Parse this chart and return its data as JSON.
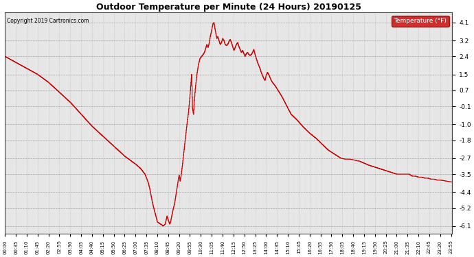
{
  "title": "Outdoor Temperature per Minute (24 Hours) 20190125",
  "copyright": "Copyright 2019 Cartronics.com",
  "legend_label": "Temperature (°F)",
  "line_color": "#cc0000",
  "legend_bg": "#cc0000",
  "legend_text_color": "#ffffff",
  "bg_color": "#ffffff",
  "plot_bg_color": "#e8e8e8",
  "grid_color": "#bbbbbb",
  "yticks": [
    4.1,
    3.2,
    2.4,
    1.5,
    0.7,
    -0.1,
    -1.0,
    -1.8,
    -2.7,
    -3.5,
    -4.4,
    -5.2,
    -6.1
  ],
  "ylim": [
    -6.5,
    4.6
  ],
  "xtick_interval_minutes": 35,
  "total_minutes": 1440,
  "key_points": [
    [
      0,
      2.4
    ],
    [
      35,
      2.1
    ],
    [
      70,
      1.8
    ],
    [
      105,
      1.5
    ],
    [
      140,
      1.1
    ],
    [
      175,
      0.6
    ],
    [
      210,
      0.1
    ],
    [
      245,
      -0.5
    ],
    [
      280,
      -1.1
    ],
    [
      315,
      -1.6
    ],
    [
      350,
      -2.1
    ],
    [
      385,
      -2.6
    ],
    [
      420,
      -3.0
    ],
    [
      435,
      -3.2
    ],
    [
      450,
      -3.5
    ],
    [
      455,
      -3.7
    ],
    [
      460,
      -3.9
    ],
    [
      465,
      -4.2
    ],
    [
      470,
      -4.6
    ],
    [
      475,
      -5.0
    ],
    [
      480,
      -5.3
    ],
    [
      485,
      -5.6
    ],
    [
      490,
      -5.9
    ],
    [
      500,
      -6.0
    ],
    [
      505,
      -6.05
    ],
    [
      508,
      -6.1
    ],
    [
      512,
      -6.05
    ],
    [
      515,
      -6.0
    ],
    [
      518,
      -5.8
    ],
    [
      521,
      -5.6
    ],
    [
      524,
      -5.75
    ],
    [
      527,
      -5.9
    ],
    [
      530,
      -6.0
    ],
    [
      533,
      -5.85
    ],
    [
      536,
      -5.6
    ],
    [
      540,
      -5.3
    ],
    [
      545,
      -5.0
    ],
    [
      550,
      -4.5
    ],
    [
      555,
      -4.0
    ],
    [
      558,
      -3.7
    ],
    [
      560,
      -3.55
    ],
    [
      563,
      -3.85
    ],
    [
      566,
      -3.6
    ],
    [
      570,
      -3.1
    ],
    [
      575,
      -2.4
    ],
    [
      580,
      -1.7
    ],
    [
      585,
      -1.0
    ],
    [
      590,
      -0.4
    ],
    [
      595,
      0.5
    ],
    [
      600,
      1.5
    ],
    [
      603,
      -0.2
    ],
    [
      606,
      -0.5
    ],
    [
      609,
      0.2
    ],
    [
      612,
      0.8
    ],
    [
      617,
      1.5
    ],
    [
      622,
      2.0
    ],
    [
      627,
      2.3
    ],
    [
      632,
      2.4
    ],
    [
      637,
      2.5
    ],
    [
      641,
      2.6
    ],
    [
      645,
      2.8
    ],
    [
      649,
      3.0
    ],
    [
      653,
      2.85
    ],
    [
      657,
      3.1
    ],
    [
      660,
      3.4
    ],
    [
      663,
      3.6
    ],
    [
      666,
      3.85
    ],
    [
      669,
      4.05
    ],
    [
      672,
      4.1
    ],
    [
      675,
      3.8
    ],
    [
      678,
      3.55
    ],
    [
      681,
      3.3
    ],
    [
      684,
      3.4
    ],
    [
      688,
      3.2
    ],
    [
      692,
      3.0
    ],
    [
      696,
      3.1
    ],
    [
      700,
      3.3
    ],
    [
      704,
      3.2
    ],
    [
      708,
      3.0
    ],
    [
      712,
      2.95
    ],
    [
      716,
      3.0
    ],
    [
      720,
      3.15
    ],
    [
      724,
      3.25
    ],
    [
      728,
      3.1
    ],
    [
      732,
      2.9
    ],
    [
      736,
      2.7
    ],
    [
      740,
      2.85
    ],
    [
      744,
      3.0
    ],
    [
      748,
      3.1
    ],
    [
      752,
      2.9
    ],
    [
      756,
      2.75
    ],
    [
      760,
      2.6
    ],
    [
      764,
      2.7
    ],
    [
      768,
      2.55
    ],
    [
      772,
      2.4
    ],
    [
      776,
      2.55
    ],
    [
      780,
      2.6
    ],
    [
      784,
      2.5
    ],
    [
      788,
      2.45
    ],
    [
      792,
      2.5
    ],
    [
      796,
      2.6
    ],
    [
      800,
      2.75
    ],
    [
      804,
      2.5
    ],
    [
      808,
      2.3
    ],
    [
      812,
      2.1
    ],
    [
      816,
      1.95
    ],
    [
      820,
      1.8
    ],
    [
      824,
      1.6
    ],
    [
      828,
      1.45
    ],
    [
      832,
      1.3
    ],
    [
      836,
      1.2
    ],
    [
      840,
      1.45
    ],
    [
      844,
      1.6
    ],
    [
      848,
      1.5
    ],
    [
      852,
      1.35
    ],
    [
      856,
      1.2
    ],
    [
      860,
      1.1
    ],
    [
      870,
      0.9
    ],
    [
      880,
      0.65
    ],
    [
      890,
      0.4
    ],
    [
      900,
      0.1
    ],
    [
      910,
      -0.2
    ],
    [
      920,
      -0.5
    ],
    [
      940,
      -0.8
    ],
    [
      960,
      -1.15
    ],
    [
      980,
      -1.45
    ],
    [
      1000,
      -1.7
    ],
    [
      1020,
      -2.0
    ],
    [
      1040,
      -2.3
    ],
    [
      1060,
      -2.5
    ],
    [
      1080,
      -2.7
    ],
    [
      1095,
      -2.75
    ],
    [
      1110,
      -2.75
    ],
    [
      1125,
      -2.8
    ],
    [
      1140,
      -2.85
    ],
    [
      1155,
      -2.95
    ],
    [
      1170,
      -3.05
    ],
    [
      1190,
      -3.15
    ],
    [
      1200,
      -3.2
    ],
    [
      1220,
      -3.3
    ],
    [
      1240,
      -3.4
    ],
    [
      1260,
      -3.5
    ],
    [
      1280,
      -3.5
    ],
    [
      1300,
      -3.5
    ],
    [
      1305,
      -3.55
    ],
    [
      1310,
      -3.6
    ],
    [
      1320,
      -3.6
    ],
    [
      1330,
      -3.65
    ],
    [
      1340,
      -3.65
    ],
    [
      1350,
      -3.7
    ],
    [
      1360,
      -3.7
    ],
    [
      1370,
      -3.75
    ],
    [
      1380,
      -3.75
    ],
    [
      1390,
      -3.8
    ],
    [
      1400,
      -3.8
    ],
    [
      1410,
      -3.82
    ],
    [
      1420,
      -3.85
    ],
    [
      1430,
      -3.88
    ],
    [
      1439,
      -3.9
    ]
  ]
}
